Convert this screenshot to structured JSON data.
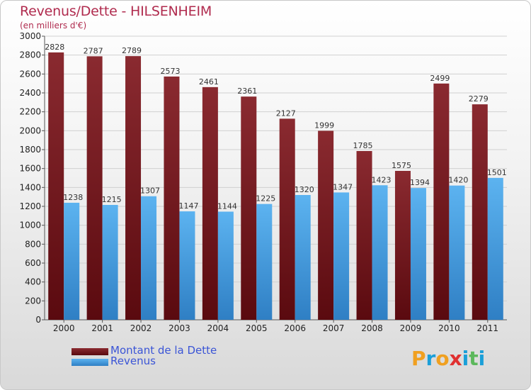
{
  "header": {
    "title": "Revenus/Dette - HILSENHEIM",
    "subtitle": "(en milliers d'€)"
  },
  "chart_data": {
    "type": "bar",
    "title": "Revenus/Dette - HILSENHEIM",
    "ylabel": "(en milliers d'€)",
    "xlabel": "",
    "ylim": [
      0,
      3000
    ],
    "yticks": [
      0,
      200,
      400,
      600,
      800,
      1000,
      1200,
      1400,
      1600,
      1800,
      2000,
      2200,
      2400,
      2600,
      2800,
      3000
    ],
    "grid": true,
    "legend": "bottom-left",
    "categories": [
      "2000",
      "2001",
      "2002",
      "2003",
      "2004",
      "2005",
      "2006",
      "2007",
      "2008",
      "2009",
      "2010",
      "2011"
    ],
    "series": [
      {
        "name": "Montant de la Dette",
        "color": "#7a1f24",
        "values": [
          2828,
          2787,
          2789,
          2573,
          2461,
          2361,
          2127,
          1999,
          1785,
          1575,
          2499,
          2279
        ]
      },
      {
        "name": "Revenus",
        "color": "#4aa3e6",
        "values": [
          1238,
          1215,
          1307,
          1147,
          1144,
          1225,
          1320,
          1347,
          1423,
          1394,
          1420,
          1501
        ]
      }
    ]
  },
  "legend": {
    "items": [
      {
        "label": "Montant de la Dette",
        "color": "#7a1f24"
      },
      {
        "label": "Revenus",
        "color": "#4aa3e6"
      }
    ]
  },
  "logo": {
    "text": "Proxiti",
    "letter_colors": [
      "#f0a020",
      "#1a9fd8",
      "#f0a020",
      "#e03030",
      "#1a9fd8",
      "#5cb85c",
      "#1a9fd8"
    ]
  }
}
